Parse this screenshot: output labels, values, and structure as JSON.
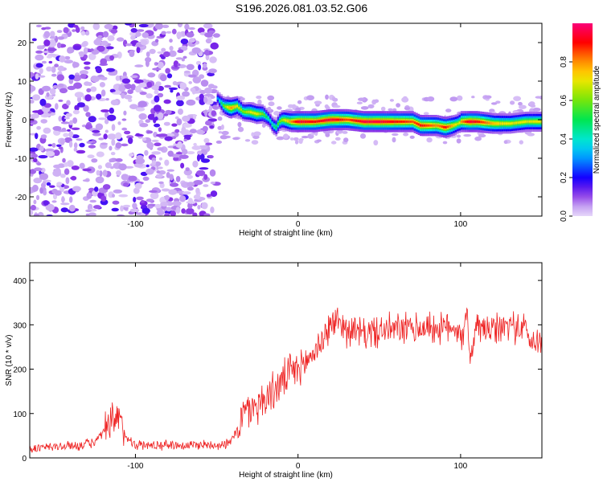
{
  "title": "S196.2026.081.03.52.G06",
  "chart_data": [
    {
      "type": "heatmap",
      "xlabel": "Height of straight line (km)",
      "ylabel": "Frequency (Hz)",
      "xlim": [
        -165,
        150
      ],
      "ylim": [
        -25,
        25
      ],
      "xticks": [
        -100,
        0,
        100
      ],
      "yticks": [
        -20,
        -10,
        0,
        10,
        20
      ],
      "noise_region_x": [
        -165,
        -50
      ],
      "signal_ridge": {
        "x": [
          -50,
          -46,
          -42,
          -38,
          -34,
          -30,
          -26,
          -22,
          -18,
          -16,
          -14,
          -12,
          -10,
          -5,
          0,
          10,
          20,
          30,
          40,
          50,
          60,
          70,
          75,
          80,
          85,
          90,
          95,
          98,
          100,
          105,
          110,
          120,
          130,
          140,
          150
        ],
        "frequency_hz": [
          5.5,
          3.5,
          3,
          3.5,
          2,
          2,
          1.5,
          1.5,
          0,
          -1.5,
          -2,
          -0.5,
          0,
          -0.5,
          -0.5,
          -0.5,
          0,
          0,
          -0.5,
          -0.5,
          -0.5,
          -0.5,
          -1.5,
          -1.5,
          -1.5,
          -2,
          -1.5,
          -1,
          -0.5,
          -0.5,
          -0.5,
          -1,
          -1,
          -0.5,
          -0.5
        ],
        "amplitude": [
          0.3,
          0.6,
          0.8,
          0.7,
          0.6,
          0.7,
          0.7,
          0.6,
          0.4,
          0.45,
          0.5,
          0.6,
          0.65,
          0.8,
          0.95,
          0.9,
          0.95,
          0.85,
          0.95,
          0.95,
          0.9,
          0.85,
          0.9,
          0.85,
          0.8,
          0.9,
          0.75,
          0.65,
          0.8,
          0.95,
          0.9,
          0.75,
          0.7,
          0.7,
          0.7
        ]
      },
      "colorbar": {
        "label": "Normalized spectral amplitude",
        "range": [
          0,
          1
        ],
        "ticks": [
          0.0,
          0.2,
          0.4,
          0.6,
          0.8
        ],
        "tick_labels": [
          "0.0",
          "0.2",
          "0.4",
          "0.6",
          "0.8"
        ]
      }
    },
    {
      "type": "line",
      "xlabel": "Height of straight line (km)",
      "ylabel": "SNR (10 * v/v)",
      "xlim": [
        -165,
        150
      ],
      "ylim": [
        0,
        440
      ],
      "xticks": [
        -100,
        0,
        100
      ],
      "yticks": [
        0,
        100,
        200,
        300,
        400
      ],
      "color": "#ee2222",
      "series": [
        {
          "name": "SNR",
          "x": [
            -165,
            -150,
            -135,
            -125,
            -120,
            -115,
            -110,
            -106,
            -100,
            -90,
            -80,
            -70,
            -60,
            -50,
            -42,
            -38,
            -36,
            -34,
            -30,
            -25,
            -20,
            -15,
            -10,
            -5,
            0,
            5,
            10,
            15,
            20,
            25,
            30,
            40,
            50,
            60,
            70,
            80,
            90,
            95,
            100,
            102,
            104,
            106,
            110,
            120,
            130,
            140,
            145,
            150
          ],
          "values": [
            20,
            25,
            28,
            35,
            55,
            75,
            85,
            50,
            30,
            28,
            30,
            28,
            30,
            30,
            32,
            60,
            80,
            95,
            110,
            120,
            135,
            150,
            170,
            190,
            200,
            215,
            240,
            265,
            300,
            310,
            290,
            280,
            285,
            290,
            290,
            295,
            290,
            300,
            285,
            270,
            320,
            230,
            295,
            285,
            300,
            290,
            250,
            280
          ]
        }
      ]
    }
  ]
}
